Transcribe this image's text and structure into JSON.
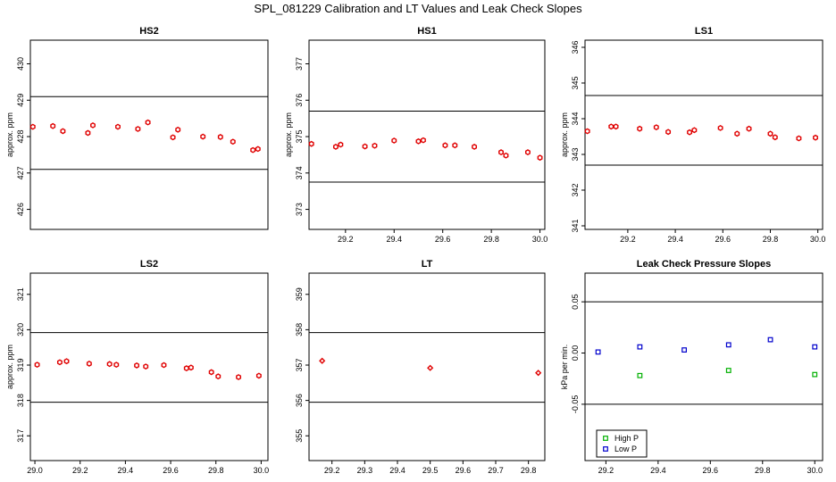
{
  "page_title": "SPL_081229  Calibration and LT Values and Leak Check Slopes",
  "colors": {
    "cal": "#e00000",
    "high": "#00b000",
    "low": "#0000cc",
    "axis": "#000000"
  },
  "chart_data": [
    {
      "id": "hs2",
      "type": "scatter",
      "title": "HS2",
      "ylabel": "approx. ppm",
      "xlim": [
        29.07,
        30.02
      ],
      "ylim": [
        425.45,
        430.65
      ],
      "xticks": [],
      "yticks": [
        426,
        427,
        428,
        429,
        430
      ],
      "ytick_labels": [
        "426",
        "427",
        "428",
        "429",
        "430"
      ],
      "hlines": [
        429.1,
        427.1
      ],
      "series": [
        {
          "name": "cal",
          "color_key": "cal",
          "marker": "hex",
          "x": [
            29.08,
            29.16,
            29.2,
            29.3,
            29.32,
            29.42,
            29.5,
            29.54,
            29.64,
            29.66,
            29.76,
            29.83,
            29.88,
            29.96,
            29.98
          ],
          "y": [
            428.27,
            428.29,
            428.15,
            428.1,
            428.31,
            428.27,
            428.21,
            428.39,
            427.98,
            428.19,
            428.0,
            427.99,
            427.86,
            427.63,
            427.66
          ]
        }
      ]
    },
    {
      "id": "hs1",
      "type": "scatter",
      "title": "HS1",
      "ylabel": "approx. ppm",
      "xlim": [
        29.05,
        30.02
      ],
      "ylim": [
        372.45,
        377.65
      ],
      "xticks": [
        29.2,
        29.4,
        29.6,
        29.8,
        30.0
      ],
      "xtick_labels": [
        "29.2",
        "29.4",
        "29.6",
        "29.8",
        "30.0"
      ],
      "yticks": [
        373,
        374,
        375,
        376,
        377
      ],
      "ytick_labels": [
        "373",
        "374",
        "375",
        "376",
        "377"
      ],
      "hlines": [
        375.7,
        373.75
      ],
      "series": [
        {
          "name": "cal",
          "color_key": "cal",
          "marker": "hex",
          "x": [
            29.06,
            29.16,
            29.18,
            29.28,
            29.32,
            29.4,
            29.5,
            29.52,
            29.61,
            29.65,
            29.73,
            29.84,
            29.86,
            29.95,
            30.0
          ],
          "y": [
            374.8,
            374.72,
            374.78,
            374.73,
            374.75,
            374.89,
            374.87,
            374.9,
            374.76,
            374.76,
            374.72,
            374.57,
            374.48,
            374.57,
            374.42
          ]
        }
      ]
    },
    {
      "id": "ls1",
      "type": "scatter",
      "title": "LS1",
      "ylabel": "approx. ppm",
      "xlim": [
        29.02,
        30.02
      ],
      "ylim": [
        340.9,
        346.2
      ],
      "xticks": [
        29.2,
        29.4,
        29.6,
        29.8,
        30.0
      ],
      "xtick_labels": [
        "29.2",
        "29.4",
        "29.6",
        "29.8",
        "30.0"
      ],
      "yticks": [
        341,
        342,
        343,
        344,
        345,
        346
      ],
      "ytick_labels": [
        "341",
        "342",
        "343",
        "344",
        "345",
        "346"
      ],
      "hlines": [
        344.65,
        342.7
      ],
      "series": [
        {
          "name": "cal",
          "color_key": "cal",
          "marker": "hex",
          "x": [
            29.03,
            29.13,
            29.15,
            29.25,
            29.32,
            29.37,
            29.46,
            29.48,
            29.59,
            29.66,
            29.71,
            29.8,
            29.82,
            29.92,
            29.99
          ],
          "y": [
            343.65,
            343.78,
            343.78,
            343.72,
            343.76,
            343.63,
            343.62,
            343.68,
            343.74,
            343.58,
            343.72,
            343.58,
            343.48,
            343.45,
            343.47
          ]
        }
      ]
    },
    {
      "id": "ls2",
      "type": "scatter",
      "title": "LS2",
      "ylabel": "approx. ppm",
      "xlim": [
        28.98,
        30.03
      ],
      "ylim": [
        316.3,
        321.6
      ],
      "xticks": [
        29.0,
        29.2,
        29.4,
        29.6,
        29.8,
        30.0
      ],
      "xtick_labels": [
        "29.0",
        "29.2",
        "29.4",
        "29.6",
        "29.8",
        "30.0"
      ],
      "yticks": [
        317,
        318,
        319,
        320,
        321
      ],
      "ytick_labels": [
        "317",
        "318",
        "319",
        "320",
        "321"
      ],
      "hlines": [
        319.92,
        317.95
      ],
      "series": [
        {
          "name": "cal",
          "color_key": "cal",
          "marker": "hex",
          "x": [
            29.01,
            29.11,
            29.14,
            29.24,
            29.33,
            29.36,
            29.45,
            29.49,
            29.57,
            29.67,
            29.69,
            29.78,
            29.81,
            29.9,
            29.99
          ],
          "y": [
            319.01,
            319.08,
            319.11,
            319.04,
            319.03,
            319.01,
            318.99,
            318.96,
            319.0,
            318.91,
            318.93,
            318.8,
            318.68,
            318.66,
            318.7
          ]
        }
      ]
    },
    {
      "id": "lt",
      "type": "scatter",
      "title": "LT",
      "ylabel": "",
      "xlim": [
        29.13,
        29.85
      ],
      "ylim": [
        354.3,
        359.6
      ],
      "xticks": [
        29.2,
        29.3,
        29.4,
        29.5,
        29.6,
        29.7,
        29.8
      ],
      "xtick_labels": [
        "29.2",
        "29.3",
        "29.4",
        "29.5",
        "29.6",
        "29.7",
        "29.8"
      ],
      "yticks": [
        355,
        356,
        357,
        358,
        359
      ],
      "ytick_labels": [
        "355",
        "356",
        "357",
        "358",
        "359"
      ],
      "hlines": [
        357.92,
        355.95
      ],
      "series": [
        {
          "name": "cal",
          "color_key": "cal",
          "marker": "diamond",
          "x": [
            29.17,
            29.5,
            29.83
          ],
          "y": [
            357.12,
            356.92,
            356.78
          ]
        }
      ]
    },
    {
      "id": "leak",
      "type": "scatter",
      "title": "Leak Check Pressure Slopes",
      "ylabel": "kPa per min.",
      "xlim": [
        29.12,
        30.03
      ],
      "ylim": [
        -0.105,
        0.078
      ],
      "xticks": [
        29.2,
        29.4,
        29.6,
        29.8,
        30.0
      ],
      "xtick_labels": [
        "29.2",
        "29.4",
        "29.6",
        "29.8",
        "30.0"
      ],
      "yticks": [
        -0.05,
        0.0,
        0.05
      ],
      "ytick_labels": [
        "-0.05",
        "0.00",
        "0.05"
      ],
      "hlines": [
        0.05,
        -0.05
      ],
      "legend": {
        "position": "bottom-left",
        "entries": [
          "High P",
          "Low P"
        ]
      },
      "series": [
        {
          "name": "High P",
          "color_key": "high",
          "marker": "square",
          "x": [
            29.33,
            29.67,
            30.0
          ],
          "y": [
            -0.022,
            -0.017,
            -0.021
          ]
        },
        {
          "name": "Low P",
          "color_key": "low",
          "marker": "square",
          "x": [
            29.17,
            29.33,
            29.5,
            29.67,
            29.83,
            30.0
          ],
          "y": [
            0.001,
            0.006,
            0.003,
            0.008,
            0.013,
            0.006
          ]
        }
      ]
    }
  ]
}
